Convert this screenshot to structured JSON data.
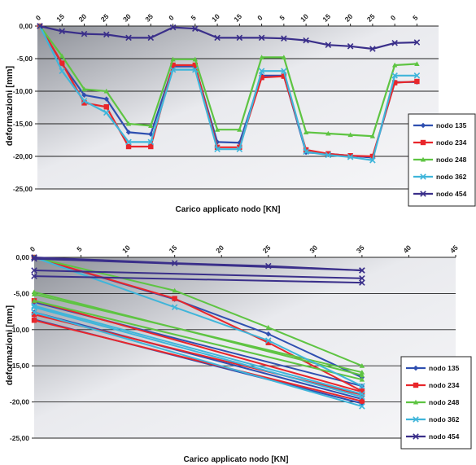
{
  "chart_data": [
    {
      "type": "line",
      "xlabel": "Carico applicato nodo [KN]",
      "ylabel": "deformazioni [mm]",
      "ylim": [
        -25,
        0
      ],
      "yticks": [
        "0,00",
        "-5,00",
        "-10,00",
        "-15,00",
        "-20,00",
        "-25,00"
      ],
      "x": [
        "0",
        "15",
        "20",
        "25",
        "30",
        "35",
        "0",
        "5",
        "10",
        "15",
        "0",
        "5",
        "10",
        "15",
        "20",
        "25",
        "0",
        "5"
      ],
      "grid": true,
      "legend": "right",
      "series": [
        {
          "name": "nodo 135",
          "color": "#2f4fb0",
          "marker": "diamond",
          "values": [
            0,
            -5.8,
            -10.6,
            -11.2,
            -16.3,
            -16.6,
            -6.2,
            -6.2,
            -17.8,
            -17.9,
            -7.6,
            -7.6,
            -19.4,
            -19.6,
            -19.9,
            -20.2,
            -8.6,
            -8.6
          ]
        },
        {
          "name": "nodo 234",
          "color": "#e8262b",
          "marker": "square",
          "values": [
            0,
            -5.7,
            -11.8,
            -12.4,
            -18.5,
            -18.5,
            -6.0,
            -6.0,
            -18.6,
            -18.6,
            -7.9,
            -7.7,
            -19.0,
            -19.6,
            -19.9,
            -20.0,
            -8.7,
            -8.5
          ]
        },
        {
          "name": "nodo 248",
          "color": "#5ec442",
          "marker": "triangle",
          "values": [
            0,
            -4.6,
            -9.7,
            -10.0,
            -15.0,
            -15.3,
            -5.1,
            -5.1,
            -15.9,
            -15.9,
            -4.8,
            -4.8,
            -16.3,
            -16.5,
            -16.7,
            -16.9,
            -6.0,
            -5.8
          ]
        },
        {
          "name": "nodo 362",
          "color": "#3fb5da",
          "marker": "x",
          "values": [
            0,
            -6.9,
            -11.5,
            -13.3,
            -17.8,
            -17.8,
            -6.7,
            -6.7,
            -18.9,
            -18.9,
            -6.9,
            -6.9,
            -19.3,
            -19.8,
            -20.1,
            -20.6,
            -7.6,
            -7.6
          ]
        },
        {
          "name": "nodo 454",
          "color": "#3a2f8a",
          "marker": "x",
          "values": [
            0,
            -0.8,
            -1.2,
            -1.3,
            -1.8,
            -1.8,
            -0.2,
            -0.4,
            -1.8,
            -1.8,
            -1.8,
            -1.9,
            -2.2,
            -2.9,
            -3.1,
            -3.5,
            -2.6,
            -2.5
          ]
        }
      ]
    },
    {
      "type": "line",
      "xlabel": "Carico applicato nodo [KN]",
      "ylabel": "deformazioni [mm]",
      "xlim": [
        0,
        45
      ],
      "ylim": [
        -25,
        0
      ],
      "xticks": [
        "0",
        "5",
        "10",
        "15",
        "20",
        "25",
        "30",
        "35",
        "40",
        "45"
      ],
      "yticks": [
        "0,00",
        "-5,00",
        "-10,00",
        "-15,00",
        "-20,00",
        "-25,00"
      ],
      "grid": true,
      "legend": "right",
      "series": [
        {
          "name": "nodo 135",
          "color": "#2f4fb0",
          "marker": "diamond",
          "lines": [
            {
              "x": [
                0,
                15,
                25,
                35
              ],
              "y": [
                0,
                -5.8,
                -10.6,
                -16.6
              ]
            },
            {
              "x": [
                0,
                35
              ],
              "y": [
                -6.2,
                -17.8
              ]
            },
            {
              "x": [
                0,
                35
              ],
              "y": [
                -7.6,
                -19.6
              ]
            },
            {
              "x": [
                0,
                35
              ],
              "y": [
                -8.6,
                -20.2
              ]
            }
          ]
        },
        {
          "name": "nodo 234",
          "color": "#e8262b",
          "marker": "square",
          "lines": [
            {
              "x": [
                0,
                15,
                25,
                35
              ],
              "y": [
                0,
                -5.7,
                -11.8,
                -18.5
              ]
            },
            {
              "x": [
                0,
                35
              ],
              "y": [
                -6.0,
                -18.6
              ]
            },
            {
              "x": [
                0,
                35
              ],
              "y": [
                -7.9,
                -19.0
              ]
            },
            {
              "x": [
                0,
                35
              ],
              "y": [
                -8.7,
                -19.9
              ]
            }
          ]
        },
        {
          "name": "nodo 248",
          "color": "#5ec442",
          "marker": "triangle",
          "lines": [
            {
              "x": [
                0,
                15,
                25,
                35
              ],
              "y": [
                0,
                -4.6,
                -9.7,
                -15.0
              ]
            },
            {
              "x": [
                0,
                35
              ],
              "y": [
                -5.1,
                -15.9
              ]
            },
            {
              "x": [
                0,
                35
              ],
              "y": [
                -4.8,
                -16.3
              ]
            },
            {
              "x": [
                0,
                35
              ],
              "y": [
                -6.0,
                -16.9
              ]
            }
          ]
        },
        {
          "name": "nodo 362",
          "color": "#3fb5da",
          "marker": "x",
          "lines": [
            {
              "x": [
                0,
                15,
                25,
                35
              ],
              "y": [
                0,
                -6.9,
                -11.5,
                -17.8
              ]
            },
            {
              "x": [
                0,
                35
              ],
              "y": [
                -6.7,
                -18.9
              ]
            },
            {
              "x": [
                0,
                35
              ],
              "y": [
                -6.9,
                -19.3
              ]
            },
            {
              "x": [
                0,
                35
              ],
              "y": [
                -7.6,
                -20.6
              ]
            }
          ]
        },
        {
          "name": "nodo 454",
          "color": "#3a2f8a",
          "marker": "x",
          "lines": [
            {
              "x": [
                0,
                15,
                25,
                35
              ],
              "y": [
                0,
                -0.8,
                -1.2,
                -1.8
              ]
            },
            {
              "x": [
                0,
                35
              ],
              "y": [
                -0.2,
                -1.8
              ]
            },
            {
              "x": [
                0,
                35
              ],
              "y": [
                -1.8,
                -2.9
              ]
            },
            {
              "x": [
                0,
                35
              ],
              "y": [
                -2.6,
                -3.5
              ]
            }
          ]
        }
      ]
    }
  ]
}
